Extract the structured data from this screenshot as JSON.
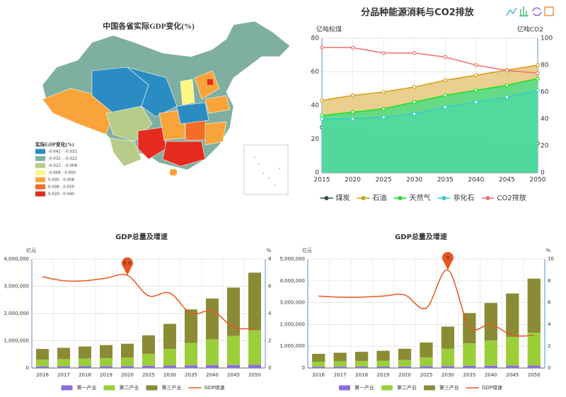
{
  "map": {
    "title": "中国各省实际GDP变化(%)",
    "legend_title": "实际GDP变化(%)",
    "legend": [
      {
        "label": "-0.042 - -0.032",
        "color": "#2b8cc4"
      },
      {
        "label": "-0.032 - -0.022",
        "color": "#7fafa0"
      },
      {
        "label": "-0.022 - -0.008",
        "color": "#b8cc8a"
      },
      {
        "label": "-0.008 - 0.000",
        "color": "#fdf682"
      },
      {
        "label": "0.000 - 0.008",
        "color": "#f9a43a"
      },
      {
        "label": "0.008 - 0.020",
        "color": "#f46d27"
      },
      {
        "label": "0.020 - 0.040",
        "color": "#e52a1e"
      }
    ]
  },
  "chart_data": [
    {
      "type": "line",
      "title": "分品种能源消耗与CO2排放",
      "y_label": "亿吨标煤",
      "y2_label": "亿吨CO2",
      "categories": [
        "2015",
        "2020",
        "2025",
        "2030",
        "2035",
        "2040",
        "2045",
        "2050"
      ],
      "ylim": [
        0,
        80
      ],
      "yticks": [
        0,
        20,
        40,
        60,
        80
      ],
      "y2lim": [
        0,
        100
      ],
      "y2ticks": [
        0,
        20,
        40,
        60,
        80,
        100
      ],
      "grid": true,
      "legend": "bottom",
      "series": [
        {
          "name": "煤炭",
          "color": "#2f4f3f",
          "fill": "#3e8a62",
          "area": true,
          "values": [
            27,
            25,
            23,
            22.5,
            21.5,
            19.5,
            18,
            17.5
          ]
        },
        {
          "name": "石油",
          "color": "#d4a017",
          "fill": "#e6c77c",
          "area": true,
          "values": [
            43,
            46,
            48,
            51,
            55,
            58,
            61,
            64
          ]
        },
        {
          "name": "天然气",
          "color": "#1ee01e",
          "fill": "#4fdc84",
          "area": true,
          "values": [
            34,
            36,
            38,
            42,
            46,
            49,
            52,
            56
          ]
        },
        {
          "name": "非化石",
          "color": "#33cccc",
          "fill": "#4fd8a0",
          "area": true,
          "values": [
            32,
            32,
            33,
            35,
            39,
            42,
            45,
            49
          ]
        },
        {
          "name": "CO2排放",
          "color": "#f07070",
          "axis": "y2",
          "values": [
            93,
            93,
            89,
            89,
            86,
            80,
            76,
            74
          ]
        }
      ]
    },
    {
      "type": "bar",
      "stacked": true,
      "title": "GDP总量及增速",
      "y_label": "亿元",
      "y2_label": "%",
      "categories": [
        "2016",
        "2017",
        "2018",
        "2019",
        "2020",
        "2025",
        "2030",
        "2035",
        "2040",
        "2045",
        "2050"
      ],
      "ylim": [
        0,
        4000000
      ],
      "yticks": [
        0,
        {
          "value": 1000000,
          "label": "1,000,000"
        },
        {
          "value": 2000000,
          "label": "2,000,000"
        },
        {
          "value": 3000000,
          "label": "3,000,000"
        },
        {
          "value": 4000000,
          "label": "4,000,000"
        }
      ],
      "y2lim": [
        0,
        8
      ],
      "y2ticks": [
        0,
        2,
        4,
        6,
        8
      ],
      "grid": true,
      "legend": "bottom",
      "mark_point": "max",
      "series": [
        {
          "name": "第一产业",
          "color": "#8a6fdc",
          "values": [
            60000,
            62000,
            65000,
            68000,
            70000,
            80000,
            90000,
            100000,
            105000,
            110000,
            115000
          ]
        },
        {
          "name": "第二产业",
          "color": "#9bcf3a",
          "values": [
            250000,
            265000,
            280000,
            295000,
            310000,
            440000,
            610000,
            820000,
            945000,
            1070000,
            1265000
          ]
        },
        {
          "name": "第三产业",
          "color": "#8b8b36",
          "values": [
            390000,
            413000,
            445000,
            477000,
            510000,
            680000,
            920000,
            1230000,
            1500000,
            1770000,
            2120000
          ]
        },
        {
          "name": "GDP增速",
          "type": "line",
          "color": "#e8561e",
          "axis": "y2",
          "values": [
            6.7,
            6.4,
            6.4,
            6.6,
            6.8,
            5.3,
            5.5,
            4.0,
            4.2,
            3.0,
            2.9
          ]
        }
      ]
    },
    {
      "type": "bar",
      "stacked": true,
      "title": "GDP总量及增速",
      "y_label": "亿元",
      "y2_label": "%",
      "categories": [
        "2016",
        "2017",
        "2018",
        "2019",
        "2020",
        "2025",
        "2030",
        "2035",
        "2040",
        "2045",
        "2050"
      ],
      "ylim": [
        0,
        5000000
      ],
      "yticks": [
        0,
        {
          "value": 1000000,
          "label": "1,000,000"
        },
        {
          "value": 2000000,
          "label": "2,000,000"
        },
        {
          "value": 3000000,
          "label": "3,000,000"
        },
        {
          "value": 4000000,
          "label": "4,000,000"
        },
        {
          "value": 5000000,
          "label": "5,000,000"
        }
      ],
      "y2lim": [
        0,
        10
      ],
      "y2ticks": [
        0,
        2,
        4,
        6,
        8,
        10
      ],
      "grid": true,
      "legend": "bottom",
      "mark_point": "max",
      "series": [
        {
          "name": "第一产业",
          "color": "#8a6fdc",
          "values": [
            60000,
            62000,
            64000,
            66000,
            70000,
            80000,
            90000,
            100000,
            105000,
            110000,
            115000
          ]
        },
        {
          "name": "第二产业",
          "color": "#9bcf3a",
          "values": [
            230000,
            248000,
            256000,
            264000,
            300000,
            410000,
            790000,
            1030000,
            1155000,
            1320000,
            1505000
          ]
        },
        {
          "name": "第三产业",
          "color": "#8b8b36",
          "values": [
            360000,
            390000,
            420000,
            460000,
            510000,
            680000,
            1020000,
            1390000,
            1720000,
            1990000,
            2480000
          ]
        },
        {
          "name": "GDP增速",
          "type": "line",
          "color": "#e8561e",
          "axis": "y2",
          "values": [
            6.6,
            6.5,
            6.5,
            6.6,
            6.7,
            5.5,
            9,
            3.8,
            4.0,
            3.0,
            3.0
          ]
        }
      ]
    }
  ]
}
